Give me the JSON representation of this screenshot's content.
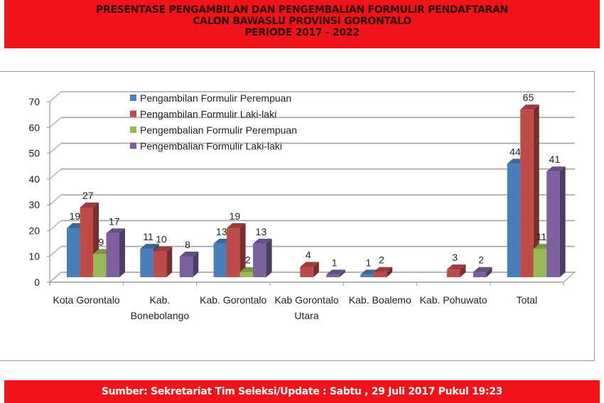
{
  "header": {
    "line1": "PRESENTASE PENGAMBILAN DAN PENGEMBALIAN FORMULIR PENDAFTARAN",
    "line2": "CALON BAWASLU PROVINSI GORONTALO",
    "line3": "PERIODE 2017 - 2022"
  },
  "footer": {
    "text": "Sumber: Sekretariat Tim Seleksi/Update : Sabtu , 29 Juli 2017 Pukul 19:23"
  },
  "colors": {
    "header_bg": "#f0141a",
    "series": [
      "#4a7ebb",
      "#be4b48",
      "#98b954",
      "#7d60a0"
    ]
  },
  "chart_data": {
    "type": "bar",
    "title": "PRESENTASE PENGAMBILAN DAN PENGEMBALIAN FORMULIR PENDAFTARAN CALON BAWASLU PROVINSI GORONTALO PERIODE 2017 - 2022",
    "xlabel": "",
    "ylabel": "",
    "ylim": [
      0,
      70
    ],
    "yticks": [
      0,
      10,
      20,
      30,
      40,
      50,
      60,
      70
    ],
    "grid": true,
    "legend_position": "top-left-inside",
    "style": "3d-clustered-column",
    "categories": [
      [
        "Kota Gorontalo"
      ],
      [
        "Kab.",
        "Bonebolango"
      ],
      [
        "Kab. Gorontalo"
      ],
      [
        "Kab Gorontalo",
        "Utara"
      ],
      [
        "Kab. Boalemo"
      ],
      [
        "Kab. Pohuwato"
      ],
      [
        "Total"
      ]
    ],
    "series": [
      {
        "name": "Pengambilan Formulir Perempuan",
        "color": "#4a7ebb",
        "values": [
          19,
          11,
          13,
          0,
          1,
          0,
          44
        ]
      },
      {
        "name": "Pengambilan Formulir Laki-laki",
        "color": "#be4b48",
        "values": [
          27,
          10,
          19,
          4,
          2,
          3,
          65
        ]
      },
      {
        "name": "Pengembalian Formulir Perempuan",
        "color": "#98b954",
        "values": [
          9,
          0,
          2,
          0,
          0,
          0,
          11
        ]
      },
      {
        "name": "Pengembalian Formulir Laki-laki",
        "color": "#7d60a0",
        "values": [
          17,
          8,
          13,
          1,
          0,
          2,
          41
        ]
      }
    ]
  }
}
